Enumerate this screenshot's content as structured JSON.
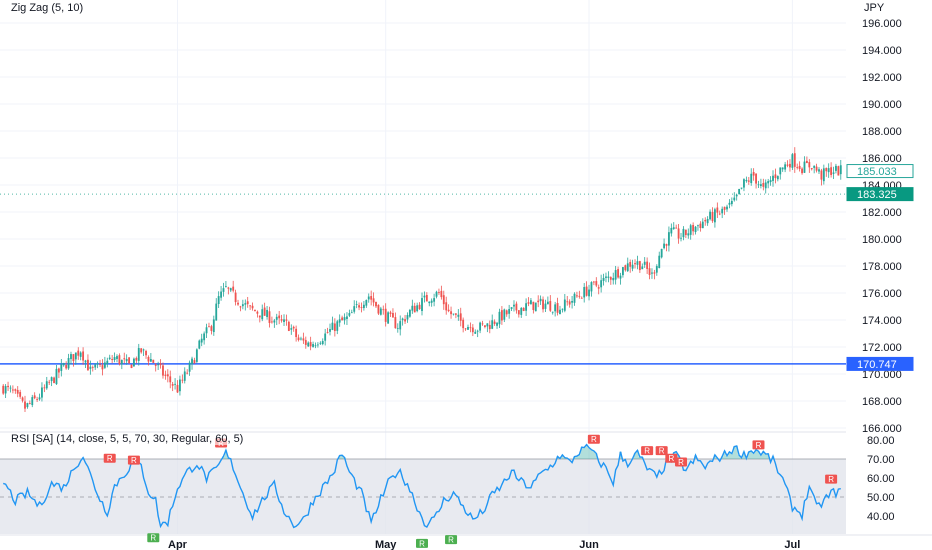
{
  "indicator_title": "Zig Zag (5, 10)",
  "rsi_title": "RSI [SA] (14, close, 5, 5, 70, 30, Regular, 60, 5)",
  "currency": "JPY",
  "rsi_marker_label": "R",
  "colors": {
    "up": "#26a69a",
    "down": "#ef5350",
    "hline": "#2962ff",
    "rsi_line": "#2196f3",
    "rsi_band": "#e0e3eb",
    "current_price_tag": "#089981"
  },
  "price_badges": {
    "last": "185.033",
    "current": "183.325",
    "hline": "170.747"
  },
  "chart_data": {
    "type": "candlestick",
    "price_axis": {
      "ticks": [
        "196.000",
        "194.000",
        "192.000",
        "190.000",
        "188.000",
        "186.000",
        "184.000",
        "182.000",
        "180.000",
        "178.000",
        "176.000",
        "174.000",
        "172.000",
        "170.000",
        "168.000",
        "166.000"
      ],
      "ylim": [
        166,
        196.8
      ]
    },
    "rsi_axis": {
      "ticks": [
        "80.00",
        "70.00",
        "60.00",
        "50.00",
        "40.00"
      ],
      "ylim": [
        33,
        82
      ],
      "band": [
        30,
        70
      ]
    },
    "x_labels": [
      "Apr",
      "May",
      "Jun",
      "Jul"
    ],
    "horizontal_line": 170.747,
    "price_anchors": [
      [
        0,
        169.0
      ],
      [
        4,
        168.6
      ],
      [
        9,
        167.5
      ],
      [
        14,
        168.2
      ],
      [
        20,
        169.5
      ],
      [
        26,
        170.8
      ],
      [
        32,
        171.8
      ],
      [
        36,
        170.2
      ],
      [
        40,
        170.5
      ],
      [
        46,
        171.2
      ],
      [
        52,
        170.6
      ],
      [
        57,
        171.7
      ],
      [
        62,
        170.9
      ],
      [
        67,
        169.8
      ],
      [
        72,
        168.9
      ],
      [
        78,
        170.8
      ],
      [
        82,
        172.5
      ],
      [
        86,
        173.6
      ],
      [
        89,
        175.6
      ],
      [
        92,
        176.3
      ],
      [
        96,
        175.6
      ],
      [
        102,
        174.8
      ],
      [
        108,
        174.4
      ],
      [
        113,
        173.9
      ],
      [
        118,
        173.6
      ],
      [
        122,
        172.5
      ],
      [
        127,
        172.2
      ],
      [
        133,
        172.9
      ],
      [
        138,
        173.7
      ],
      [
        143,
        174.2
      ],
      [
        147,
        175.2
      ],
      [
        151,
        175.8
      ],
      [
        154,
        175.1
      ],
      [
        158,
        174.3
      ],
      [
        163,
        173.6
      ],
      [
        168,
        174.6
      ],
      [
        172,
        175.2
      ],
      [
        176,
        175.7
      ],
      [
        180,
        176.0
      ],
      [
        184,
        174.6
      ],
      [
        188,
        174.0
      ],
      [
        192,
        173.6
      ],
      [
        196,
        173.4
      ],
      [
        201,
        173.7
      ],
      [
        206,
        174.3
      ],
      [
        212,
        174.8
      ],
      [
        218,
        175.1
      ],
      [
        224,
        175.2
      ],
      [
        230,
        174.9
      ],
      [
        236,
        175.6
      ],
      [
        242,
        176.3
      ],
      [
        248,
        176.9
      ],
      [
        254,
        177.6
      ],
      [
        260,
        178.3
      ],
      [
        264,
        178.1
      ],
      [
        268,
        177.3
      ],
      [
        272,
        179.3
      ],
      [
        276,
        180.5
      ],
      [
        280,
        180.2
      ],
      [
        286,
        180.9
      ],
      [
        292,
        181.6
      ],
      [
        298,
        182.1
      ],
      [
        302,
        182.7
      ],
      [
        306,
        184.1
      ],
      [
        310,
        184.7
      ],
      [
        314,
        183.6
      ],
      [
        318,
        184.6
      ],
      [
        322,
        185.3
      ],
      [
        326,
        185.9
      ],
      [
        330,
        185.3
      ],
      [
        334,
        185.5
      ],
      [
        338,
        184.7
      ],
      [
        342,
        185.1
      ],
      [
        346,
        185.03
      ]
    ],
    "rsi_anchors": [
      [
        0,
        58
      ],
      [
        5,
        48
      ],
      [
        10,
        52
      ],
      [
        15,
        45
      ],
      [
        20,
        57
      ],
      [
        25,
        55
      ],
      [
        30,
        67
      ],
      [
        33,
        72
      ],
      [
        37,
        58
      ],
      [
        40,
        49
      ],
      [
        43,
        42
      ],
      [
        46,
        56
      ],
      [
        50,
        62
      ],
      [
        54,
        69
      ],
      [
        57,
        66
      ],
      [
        60,
        53
      ],
      [
        63,
        48
      ],
      [
        65,
        35
      ],
      [
        68,
        37
      ],
      [
        72,
        55
      ],
      [
        76,
        63
      ],
      [
        80,
        68
      ],
      [
        84,
        60
      ],
      [
        88,
        64
      ],
      [
        92,
        73
      ],
      [
        95,
        66
      ],
      [
        99,
        52
      ],
      [
        103,
        40
      ],
      [
        108,
        50
      ],
      [
        112,
        56
      ],
      [
        116,
        43
      ],
      [
        120,
        35
      ],
      [
        124,
        38
      ],
      [
        128,
        48
      ],
      [
        132,
        55
      ],
      [
        136,
        62
      ],
      [
        140,
        73
      ],
      [
        143,
        63
      ],
      [
        148,
        52
      ],
      [
        152,
        36
      ],
      [
        155,
        46
      ],
      [
        159,
        57
      ],
      [
        163,
        64
      ],
      [
        167,
        57
      ],
      [
        171,
        45
      ],
      [
        174,
        36
      ],
      [
        178,
        38
      ],
      [
        182,
        48
      ],
      [
        186,
        52
      ],
      [
        190,
        45
      ],
      [
        194,
        38
      ],
      [
        198,
        42
      ],
      [
        202,
        51
      ],
      [
        206,
        56
      ],
      [
        210,
        63
      ],
      [
        214,
        58
      ],
      [
        218,
        55
      ],
      [
        222,
        62
      ],
      [
        226,
        66
      ],
      [
        230,
        72
      ],
      [
        234,
        68
      ],
      [
        238,
        74
      ],
      [
        242,
        76
      ],
      [
        246,
        69
      ],
      [
        249,
        65
      ],
      [
        252,
        58
      ],
      [
        255,
        72
      ],
      [
        258,
        68
      ],
      [
        262,
        73
      ],
      [
        266,
        65
      ],
      [
        270,
        60
      ],
      [
        274,
        68
      ],
      [
        278,
        72
      ],
      [
        282,
        64
      ],
      [
        286,
        70
      ],
      [
        290,
        66
      ],
      [
        294,
        70
      ],
      [
        298,
        72
      ],
      [
        302,
        76
      ],
      [
        306,
        72
      ],
      [
        310,
        75
      ],
      [
        314,
        73
      ],
      [
        318,
        69
      ],
      [
        322,
        59
      ],
      [
        326,
        45
      ],
      [
        330,
        41
      ],
      [
        333,
        56
      ],
      [
        336,
        44
      ],
      [
        339,
        48
      ],
      [
        342,
        52
      ],
      [
        346,
        53
      ]
    ],
    "rsi_markers": [
      {
        "i": 44,
        "v": 67,
        "type": "bear"
      },
      {
        "i": 54,
        "v": 66,
        "type": "bear"
      },
      {
        "i": 62,
        "v": 32,
        "type": "bull"
      },
      {
        "i": 90,
        "v": 75,
        "type": "bear"
      },
      {
        "i": 173,
        "v": 29,
        "type": "bull"
      },
      {
        "i": 185,
        "v": 31,
        "type": "bull"
      },
      {
        "i": 244,
        "v": 77,
        "type": "bear"
      },
      {
        "i": 266,
        "v": 71,
        "type": "bear"
      },
      {
        "i": 272,
        "v": 71,
        "type": "bear"
      },
      {
        "i": 276,
        "v": 67,
        "type": "bear"
      },
      {
        "i": 280,
        "v": 65,
        "type": "bear"
      },
      {
        "i": 312,
        "v": 74,
        "type": "bear"
      },
      {
        "i": 342,
        "v": 56,
        "type": "bear"
      }
    ]
  }
}
